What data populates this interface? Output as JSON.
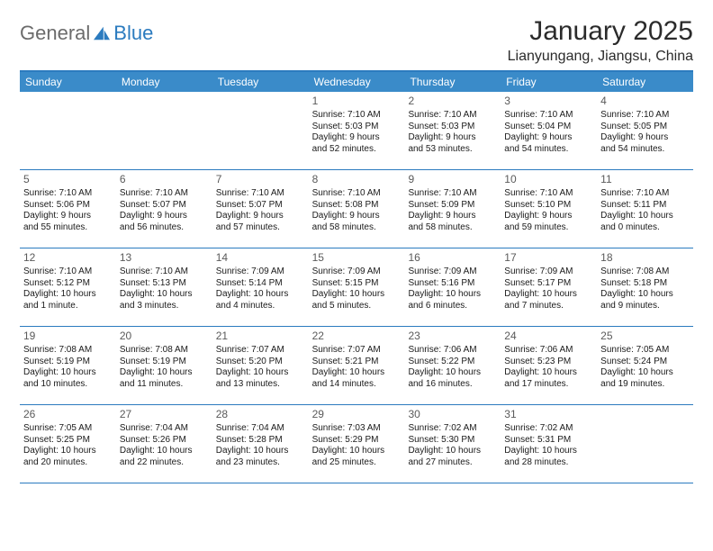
{
  "brand": {
    "part1": "General",
    "part2": "Blue"
  },
  "title": "January 2025",
  "location": "Lianyungang, Jiangsu, China",
  "colors": {
    "accent": "#2b7bbf",
    "header_bg": "#3a8bc9",
    "text": "#1a1a1a",
    "muted": "#5a5a5a",
    "logo_gray": "#6b6b6b"
  },
  "dow": [
    "Sunday",
    "Monday",
    "Tuesday",
    "Wednesday",
    "Thursday",
    "Friday",
    "Saturday"
  ],
  "weeks": [
    [
      null,
      null,
      null,
      {
        "n": "1",
        "sr": "7:10 AM",
        "ss": "5:03 PM",
        "dl1": "Daylight: 9 hours",
        "dl2": "and 52 minutes."
      },
      {
        "n": "2",
        "sr": "7:10 AM",
        "ss": "5:03 PM",
        "dl1": "Daylight: 9 hours",
        "dl2": "and 53 minutes."
      },
      {
        "n": "3",
        "sr": "7:10 AM",
        "ss": "5:04 PM",
        "dl1": "Daylight: 9 hours",
        "dl2": "and 54 minutes."
      },
      {
        "n": "4",
        "sr": "7:10 AM",
        "ss": "5:05 PM",
        "dl1": "Daylight: 9 hours",
        "dl2": "and 54 minutes."
      }
    ],
    [
      {
        "n": "5",
        "sr": "7:10 AM",
        "ss": "5:06 PM",
        "dl1": "Daylight: 9 hours",
        "dl2": "and 55 minutes."
      },
      {
        "n": "6",
        "sr": "7:10 AM",
        "ss": "5:07 PM",
        "dl1": "Daylight: 9 hours",
        "dl2": "and 56 minutes."
      },
      {
        "n": "7",
        "sr": "7:10 AM",
        "ss": "5:07 PM",
        "dl1": "Daylight: 9 hours",
        "dl2": "and 57 minutes."
      },
      {
        "n": "8",
        "sr": "7:10 AM",
        "ss": "5:08 PM",
        "dl1": "Daylight: 9 hours",
        "dl2": "and 58 minutes."
      },
      {
        "n": "9",
        "sr": "7:10 AM",
        "ss": "5:09 PM",
        "dl1": "Daylight: 9 hours",
        "dl2": "and 58 minutes."
      },
      {
        "n": "10",
        "sr": "7:10 AM",
        "ss": "5:10 PM",
        "dl1": "Daylight: 9 hours",
        "dl2": "and 59 minutes."
      },
      {
        "n": "11",
        "sr": "7:10 AM",
        "ss": "5:11 PM",
        "dl1": "Daylight: 10 hours",
        "dl2": "and 0 minutes."
      }
    ],
    [
      {
        "n": "12",
        "sr": "7:10 AM",
        "ss": "5:12 PM",
        "dl1": "Daylight: 10 hours",
        "dl2": "and 1 minute."
      },
      {
        "n": "13",
        "sr": "7:10 AM",
        "ss": "5:13 PM",
        "dl1": "Daylight: 10 hours",
        "dl2": "and 3 minutes."
      },
      {
        "n": "14",
        "sr": "7:09 AM",
        "ss": "5:14 PM",
        "dl1": "Daylight: 10 hours",
        "dl2": "and 4 minutes."
      },
      {
        "n": "15",
        "sr": "7:09 AM",
        "ss": "5:15 PM",
        "dl1": "Daylight: 10 hours",
        "dl2": "and 5 minutes."
      },
      {
        "n": "16",
        "sr": "7:09 AM",
        "ss": "5:16 PM",
        "dl1": "Daylight: 10 hours",
        "dl2": "and 6 minutes."
      },
      {
        "n": "17",
        "sr": "7:09 AM",
        "ss": "5:17 PM",
        "dl1": "Daylight: 10 hours",
        "dl2": "and 7 minutes."
      },
      {
        "n": "18",
        "sr": "7:08 AM",
        "ss": "5:18 PM",
        "dl1": "Daylight: 10 hours",
        "dl2": "and 9 minutes."
      }
    ],
    [
      {
        "n": "19",
        "sr": "7:08 AM",
        "ss": "5:19 PM",
        "dl1": "Daylight: 10 hours",
        "dl2": "and 10 minutes."
      },
      {
        "n": "20",
        "sr": "7:08 AM",
        "ss": "5:19 PM",
        "dl1": "Daylight: 10 hours",
        "dl2": "and 11 minutes."
      },
      {
        "n": "21",
        "sr": "7:07 AM",
        "ss": "5:20 PM",
        "dl1": "Daylight: 10 hours",
        "dl2": "and 13 minutes."
      },
      {
        "n": "22",
        "sr": "7:07 AM",
        "ss": "5:21 PM",
        "dl1": "Daylight: 10 hours",
        "dl2": "and 14 minutes."
      },
      {
        "n": "23",
        "sr": "7:06 AM",
        "ss": "5:22 PM",
        "dl1": "Daylight: 10 hours",
        "dl2": "and 16 minutes."
      },
      {
        "n": "24",
        "sr": "7:06 AM",
        "ss": "5:23 PM",
        "dl1": "Daylight: 10 hours",
        "dl2": "and 17 minutes."
      },
      {
        "n": "25",
        "sr": "7:05 AM",
        "ss": "5:24 PM",
        "dl1": "Daylight: 10 hours",
        "dl2": "and 19 minutes."
      }
    ],
    [
      {
        "n": "26",
        "sr": "7:05 AM",
        "ss": "5:25 PM",
        "dl1": "Daylight: 10 hours",
        "dl2": "and 20 minutes."
      },
      {
        "n": "27",
        "sr": "7:04 AM",
        "ss": "5:26 PM",
        "dl1": "Daylight: 10 hours",
        "dl2": "and 22 minutes."
      },
      {
        "n": "28",
        "sr": "7:04 AM",
        "ss": "5:28 PM",
        "dl1": "Daylight: 10 hours",
        "dl2": "and 23 minutes."
      },
      {
        "n": "29",
        "sr": "7:03 AM",
        "ss": "5:29 PM",
        "dl1": "Daylight: 10 hours",
        "dl2": "and 25 minutes."
      },
      {
        "n": "30",
        "sr": "7:02 AM",
        "ss": "5:30 PM",
        "dl1": "Daylight: 10 hours",
        "dl2": "and 27 minutes."
      },
      {
        "n": "31",
        "sr": "7:02 AM",
        "ss": "5:31 PM",
        "dl1": "Daylight: 10 hours",
        "dl2": "and 28 minutes."
      },
      null
    ]
  ],
  "labels": {
    "sunrise": "Sunrise:",
    "sunset": "Sunset:"
  }
}
